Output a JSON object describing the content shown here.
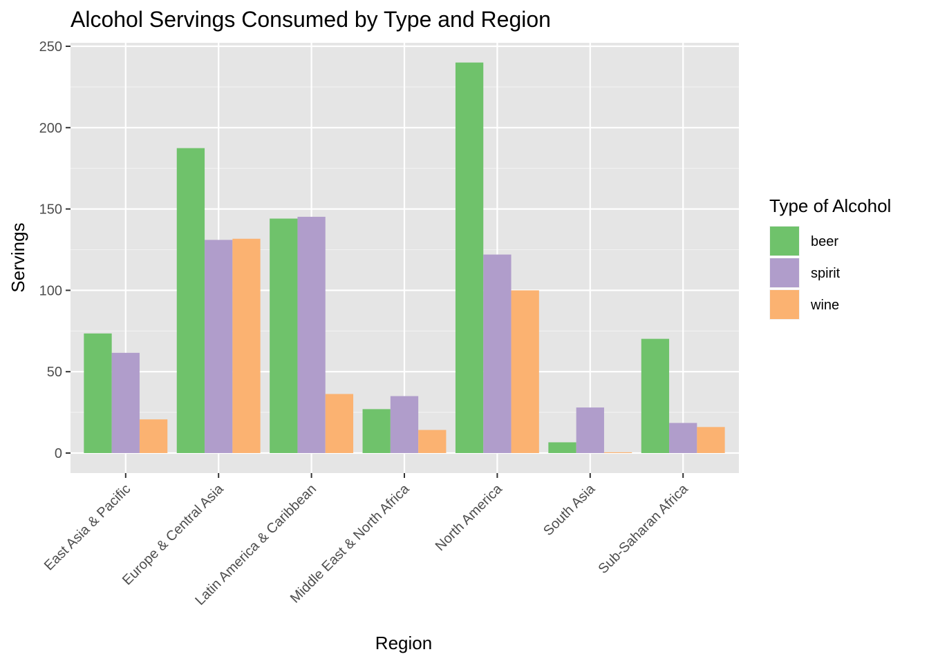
{
  "chart_data": {
    "type": "bar",
    "title": "Alcohol Servings Consumed by Type and Region",
    "xlabel": "Region",
    "ylabel": "Servings",
    "ylim": [
      0,
      250
    ],
    "yticks": [
      0,
      50,
      100,
      150,
      200,
      250
    ],
    "grid": true,
    "legend_title": "Type of Alcohol",
    "legend_position": "right",
    "categories": [
      "East Asia & Pacific",
      "Europe & Central Asia",
      "Latin America & Caribbean",
      "Middle East & North Africa",
      "North America",
      "South Asia",
      "Sub-Saharan Africa"
    ],
    "series": [
      {
        "name": "beer",
        "color": "#6fc26b",
        "values": [
          73.5,
          187.4,
          144.1,
          27.0,
          240.0,
          6.6,
          70.2
        ]
      },
      {
        "name": "spirit",
        "color": "#b09dcb",
        "values": [
          61.6,
          131.0,
          145.2,
          35.0,
          122.0,
          28.0,
          18.5
        ]
      },
      {
        "name": "wine",
        "color": "#fbb271",
        "values": [
          20.7,
          131.7,
          36.3,
          14.2,
          100.0,
          0.5,
          16.0
        ]
      }
    ]
  }
}
